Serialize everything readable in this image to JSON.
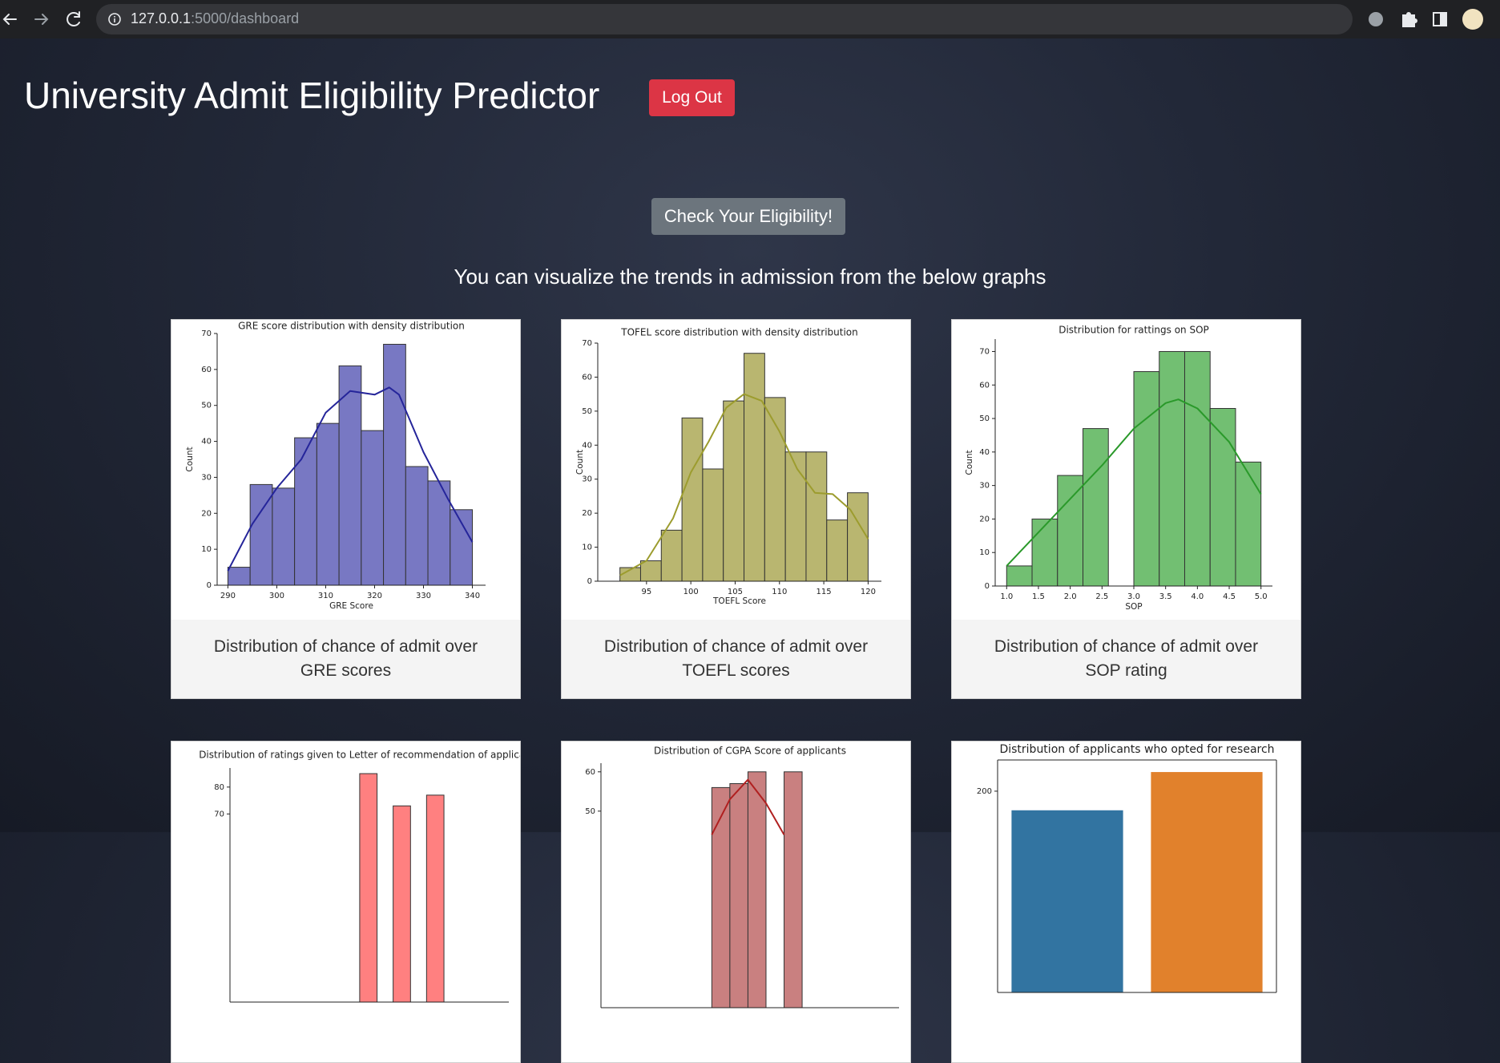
{
  "browser": {
    "host": "127.0.0.1",
    "path": ":5000/dashboard"
  },
  "header": {
    "title": "University Admit Eligibility Predictor",
    "logout": "Log Out"
  },
  "check_button": "Check Your Eligibility!",
  "intro": "You can visualize the trends in admission from the below graphs",
  "cards": [
    {
      "chart": {
        "type": "histogram",
        "title": "GRE score distribution with density distribution",
        "xlabel": "GRE Score",
        "ylabel": "Count",
        "bins": [
          290,
          294.545,
          299.091,
          303.636,
          308.182,
          312.727,
          317.273,
          321.818,
          326.364,
          330.909,
          335.455,
          340
        ],
        "values": [
          5,
          28,
          27,
          41,
          45,
          61,
          43,
          67,
          33,
          29,
          21
        ],
        "color": "#7878c3",
        "kde": {
          "x": [
            290,
            295,
            300,
            305,
            310,
            315,
            320,
            323,
            325,
            330,
            335,
            340
          ],
          "y": [
            4,
            17,
            27,
            35,
            48,
            54,
            53,
            55,
            53,
            37,
            24,
            12
          ],
          "color": "#25259a"
        },
        "xlim": [
          287.8,
          342.7
        ],
        "ylim": [
          0,
          70
        ],
        "xticks": [
          290,
          300,
          310,
          320,
          330,
          340
        ],
        "yticks": [
          0,
          10,
          20,
          30,
          40,
          50,
          60,
          70
        ]
      },
      "caption": "Distribution of chance of admit over GRE scores"
    },
    {
      "chart": {
        "type": "histogram",
        "title": "TOFEL score distribution with density distribution",
        "xlabel": "TOEFL Score",
        "ylabel": "Count",
        "bins": [
          92,
          94.333,
          96.667,
          99,
          101.333,
          103.667,
          106,
          108.333,
          110.667,
          113,
          115.333,
          117.667,
          120
        ],
        "values": [
          4,
          6,
          15,
          48,
          33,
          53,
          67,
          54,
          38,
          38,
          18,
          26
        ],
        "color": "#b9b670",
        "kde": {
          "x": [
            92,
            95,
            98,
            100,
            102,
            104,
            106,
            108,
            110,
            112,
            114,
            116,
            118,
            120
          ],
          "y": [
            1.7,
            6,
            18.5,
            32,
            41,
            51,
            55,
            53,
            44,
            33,
            26,
            25.6,
            21,
            12.4
          ],
          "color": "#9c9c2e"
        },
        "xlim": [
          89.5,
          121.5
        ],
        "ylim": [
          0,
          70
        ],
        "xticks": [
          95,
          100,
          105,
          110,
          115,
          120
        ],
        "yticks": [
          0,
          10,
          20,
          30,
          40,
          50,
          60,
          70
        ]
      },
      "caption": "Distribution of chance of admit over TOEFL scores"
    },
    {
      "chart": {
        "type": "histogram",
        "title": "Distribution for rattings on SOP",
        "xlabel": "SOP",
        "ylabel": "Count",
        "bins": [
          1,
          1.4,
          1.8,
          2.2,
          2.6,
          3,
          3.4,
          3.8,
          4.2,
          4.6,
          5
        ],
        "values": [
          6,
          20,
          33,
          47,
          0,
          64,
          70,
          70,
          53,
          37
        ],
        "color": "#72bf72",
        "kde": {
          "x": [
            1,
            1.5,
            2,
            2.5,
            3,
            3.5,
            3.7,
            4,
            4.5,
            5
          ],
          "y": [
            6,
            16,
            26,
            36,
            47,
            54.6,
            55.7,
            53,
            43,
            27.4
          ],
          "color": "#2a992a"
        },
        "xlim": [
          0.82,
          5.18
        ],
        "ylim": [
          0,
          73.7
        ],
        "xticks": [
          {
            "value": 1,
            "label": "1.0"
          },
          1.5,
          {
            "value": 2,
            "label": "2.0"
          },
          2.5,
          {
            "value": 3,
            "label": "3.0"
          },
          3.5,
          {
            "value": 4,
            "label": "4.0"
          },
          4.5,
          {
            "value": 5,
            "label": "5.0"
          }
        ],
        "yticks": [
          0,
          10,
          20,
          30,
          40,
          50,
          60,
          70
        ]
      },
      "caption": "Distribution of chance of admit over SOP rating"
    },
    {
      "chart": {
        "type": "bar",
        "title": "Distribution of ratings given to Letter of recommendation of applicants",
        "x": [
          3,
          3.5,
          4
        ],
        "values": [
          85,
          73,
          77
        ],
        "bar_width": 0.26,
        "color": "#ff8080",
        "xlim": [
          0.93,
          5.1
        ],
        "ylim": [
          0,
          87.1
        ],
        "yticks": [
          70,
          80
        ]
      }
    },
    {
      "chart": {
        "type": "bar",
        "title": "Distribution of CGPA Score of applicants",
        "x": [
          8.17,
          8.39,
          8.61,
          9.05
        ],
        "values": [
          56,
          57,
          60,
          60
        ],
        "bar_width": 0.22,
        "color": "#c98080",
        "kde": {
          "x": [
            8.06,
            8.28,
            8.5,
            8.72,
            8.94
          ],
          "y": [
            44,
            53,
            58,
            52,
            44
          ],
          "color": "#b02020"
        },
        "xlim": [
          6.71,
          10.34
        ],
        "ylim": [
          0,
          62.2
        ],
        "yticks": [
          50,
          60
        ]
      }
    },
    {
      "chart": {
        "type": "bar",
        "title": "Distribution of applicants who opted for research",
        "categories": [
          null,
          null
        ],
        "values": [
          181,
          219
        ],
        "colors": [
          "#3274a1",
          "#e1812c"
        ],
        "ylim": [
          0,
          231
        ],
        "yticks": [
          200
        ],
        "frame": true
      }
    }
  ]
}
